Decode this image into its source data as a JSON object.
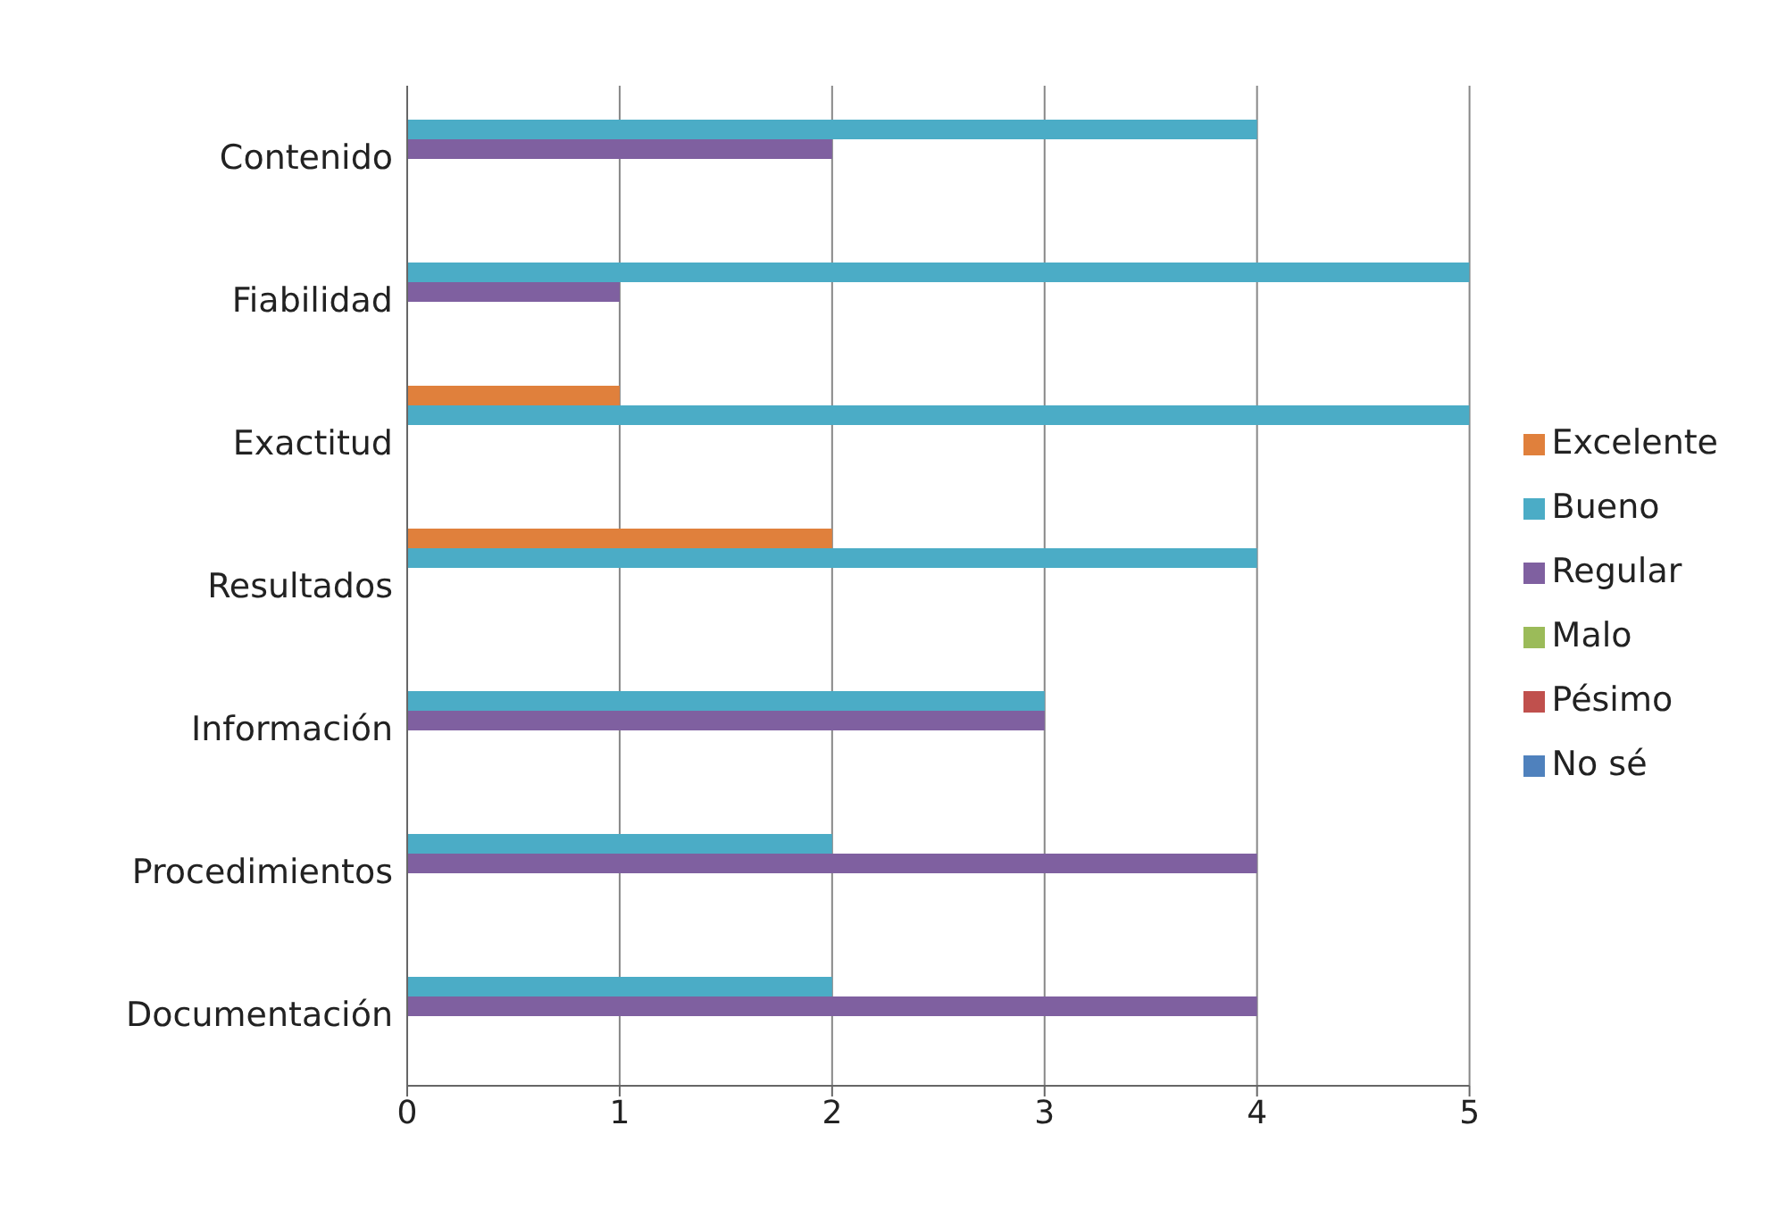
{
  "chart_data": {
    "type": "bar",
    "orientation": "horizontal",
    "categories": [
      "Contenido",
      "Fiabilidad",
      "Exactitud",
      "Resultados",
      "Información",
      "Procedimientos",
      "Documentación"
    ],
    "series": [
      {
        "name": "Excelente",
        "color": "#e0803c",
        "values": [
          0,
          0,
          1,
          2,
          0,
          0,
          0
        ]
      },
      {
        "name": "Bueno",
        "color": "#4bacc6",
        "values": [
          4,
          5,
          5,
          4,
          3,
          2,
          2
        ]
      },
      {
        "name": "Regular",
        "color": "#7f60a0",
        "values": [
          2,
          1,
          0,
          0,
          3,
          4,
          4
        ]
      },
      {
        "name": "Malo",
        "color": "#9bbb59",
        "values": [
          0,
          0,
          0,
          0,
          0,
          0,
          0
        ]
      },
      {
        "name": "Pésimo",
        "color": "#c0504d",
        "values": [
          0,
          0,
          0,
          0,
          0,
          0,
          0
        ]
      },
      {
        "name": "No sé",
        "color": "#4f81bd",
        "values": [
          0,
          0,
          0,
          0,
          0,
          0,
          0
        ]
      }
    ],
    "xlim": [
      0,
      5
    ],
    "xticks": [
      0,
      1,
      2,
      3,
      4,
      5
    ],
    "grid": "x",
    "legend": "right"
  }
}
